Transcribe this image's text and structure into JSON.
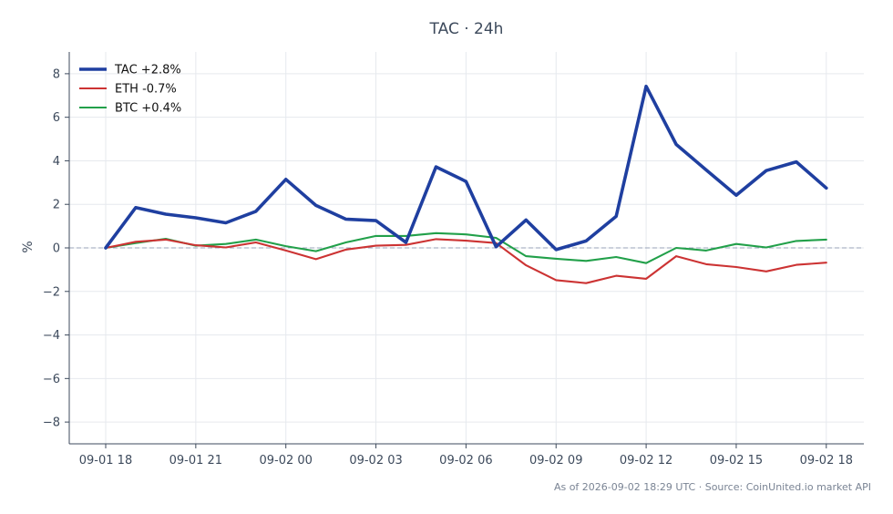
{
  "chart_data": {
    "type": "line",
    "title": "TAC · 24h",
    "xlabel": "",
    "ylabel": "%",
    "ylim": [
      -9,
      9
    ],
    "yticks": [
      -8,
      -6,
      -4,
      -2,
      0,
      2,
      4,
      6,
      8
    ],
    "ytick_labels": [
      "−8",
      "−6",
      "−4",
      "−2",
      "0",
      "2",
      "4",
      "6",
      "8"
    ],
    "x": [
      "09-01 18",
      "09-01 19",
      "09-01 20",
      "09-01 21",
      "09-01 22",
      "09-01 23",
      "09-02 00",
      "09-02 01",
      "09-02 02",
      "09-02 03",
      "09-02 04",
      "09-02 05",
      "09-02 06",
      "09-02 07",
      "09-02 08",
      "09-02 09",
      "09-02 10",
      "09-02 11",
      "09-02 12",
      "09-02 13",
      "09-02 14",
      "09-02 15",
      "09-02 16",
      "09-02 17",
      "09-02 18"
    ],
    "xticks": [
      "09-01 18",
      "09-01 21",
      "09-02 00",
      "09-02 03",
      "09-02 06",
      "09-02 09",
      "09-02 12",
      "09-02 15",
      "09-02 18"
    ],
    "grid": true,
    "legend_position": "top-left",
    "zero_line": true,
    "series": [
      {
        "name": "TAC +2.8%",
        "color": "#1f3fa0",
        "values": [
          0.0,
          1.85,
          1.55,
          1.38,
          1.15,
          1.68,
          3.15,
          1.95,
          1.32,
          1.25,
          0.25,
          3.72,
          3.05,
          0.05,
          1.28,
          -0.08,
          0.32,
          1.45,
          7.42,
          4.75,
          3.58,
          2.42,
          3.55,
          3.95,
          2.75
        ]
      },
      {
        "name": "ETH -0.7%",
        "color": "#cc3333",
        "values": [
          0.0,
          0.28,
          0.38,
          0.12,
          0.02,
          0.25,
          -0.12,
          -0.52,
          -0.08,
          0.1,
          0.14,
          0.4,
          0.33,
          0.22,
          -0.8,
          -1.48,
          -1.62,
          -1.28,
          -1.42,
          -0.38,
          -0.75,
          -0.88,
          -1.08,
          -0.78,
          -0.68
        ]
      },
      {
        "name": "BTC +0.4%",
        "color": "#22a04a",
        "values": [
          0.0,
          0.22,
          0.42,
          0.1,
          0.18,
          0.38,
          0.08,
          -0.15,
          0.25,
          0.55,
          0.55,
          0.68,
          0.62,
          0.46,
          -0.38,
          -0.5,
          -0.6,
          -0.42,
          -0.7,
          0.0,
          -0.12,
          0.18,
          0.02,
          0.32,
          0.38
        ]
      }
    ],
    "footer": "As of 2026-09-02 18:29 UTC · Source: CoinUnited.io market API"
  }
}
